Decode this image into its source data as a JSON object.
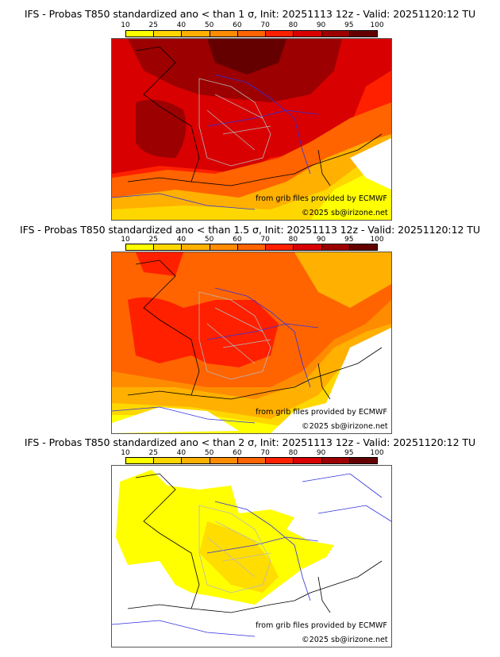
{
  "colorbar": {
    "ticks": [
      "10",
      "25",
      "40",
      "50",
      "60",
      "70",
      "80",
      "90",
      "95",
      "100"
    ],
    "colors": [
      "#ffff00",
      "#ffd700",
      "#ffb000",
      "#ff8c00",
      "#ff6400",
      "#ff2000",
      "#d80000",
      "#9c0000",
      "#640000"
    ]
  },
  "panels": [
    {
      "title": "IFS - Probas T850  standardized ano < than 1 σ, Init: 20251113 12z - Valid: 20251120:12 TU",
      "sigma": "1",
      "credit_source": "from grib files provided by ECMWF",
      "credit_copyright": "©2025 sb@irizone.net"
    },
    {
      "title": "IFS - Probas T850  standardized ano < than 1.5 σ, Init: 20251113 12z - Valid: 20251120:12 TU",
      "sigma": "1.5",
      "credit_source": "from grib files provided by ECMWF",
      "credit_copyright": "©2025 sb@irizone.net"
    },
    {
      "title": "IFS - Probas T850  standardized ano < than 2 σ, Init: 20251113 12z - Valid: 20251120:12 TU",
      "sigma": "2",
      "credit_source": "from grib files provided by ECMWF",
      "credit_copyright": "©2025 sb@irizone.net"
    }
  ],
  "map_colors": {
    "coast": "#000000",
    "rivers": "#3030e0",
    "borders": "#b8b8b8"
  }
}
